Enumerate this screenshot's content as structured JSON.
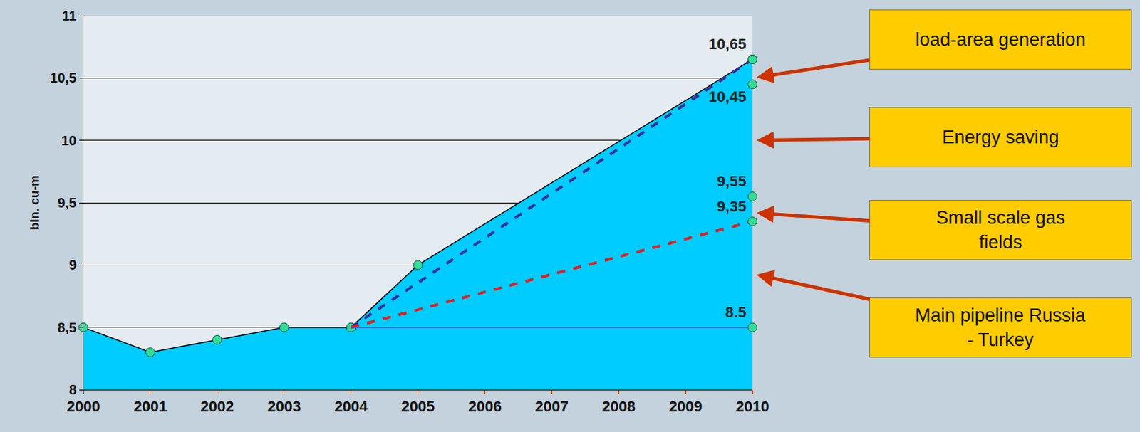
{
  "chart_data": {
    "type": "area",
    "y_label": "bln. cu-m",
    "xlim": [
      2000,
      2010
    ],
    "xticks": [
      2000,
      2001,
      2002,
      2003,
      2004,
      2005,
      2006,
      2007,
      2008,
      2009,
      2010
    ],
    "ylim": [
      8,
      11
    ],
    "yticks": [
      8,
      {
        "value": 8.5,
        "label": "8,5"
      },
      9,
      {
        "value": 9.5,
        "label": "9,5"
      },
      10,
      {
        "value": 10.5,
        "label": "10,5"
      },
      11
    ],
    "grid": true,
    "series": [
      {
        "type": "area",
        "color": "#00ccff",
        "marker": "circle",
        "x": [
          2000,
          2001,
          2002,
          2003,
          2004,
          2005,
          2010
        ],
        "values": [
          8.5,
          8.3,
          8.4,
          8.5,
          8.5,
          9.0,
          10.65
        ]
      },
      {
        "type": "line",
        "color": "#333399",
        "line_style": "dash",
        "x": [
          2004,
          2010
        ],
        "values": [
          8.5,
          10.65
        ]
      },
      {
        "type": "line",
        "color": "#dd2222",
        "line_style": "dash",
        "x": [
          2004,
          2010
        ],
        "values": [
          8.5,
          9.35
        ]
      },
      {
        "type": "line",
        "color": "#3355cc",
        "line_style": "solid",
        "x": [
          2004,
          2010
        ],
        "values": [
          8.5,
          8.5
        ]
      },
      {
        "type": "scatter",
        "color": "#33dd99",
        "marker": "circle",
        "data_labels": true,
        "x": [
          2010,
          2010,
          2010,
          2010,
          2010
        ],
        "values": [
          10.65,
          10.45,
          9.55,
          9.35,
          8.5
        ],
        "value_labels": [
          "10,65",
          "10,45",
          "9,55",
          "9,35",
          "8.5"
        ]
      }
    ],
    "annotations": [
      {
        "text": "load-area generation",
        "x": 2010,
        "y": 10.5
      },
      {
        "text": "Energy saving",
        "x": 2010,
        "y": 10.0
      },
      {
        "text": "Small scale gas\nfields",
        "x": 2010,
        "y": 9.42
      },
      {
        "text": "Main pipeline Russia\n- Turkey",
        "x": 2010,
        "y": 8.93
      }
    ]
  }
}
